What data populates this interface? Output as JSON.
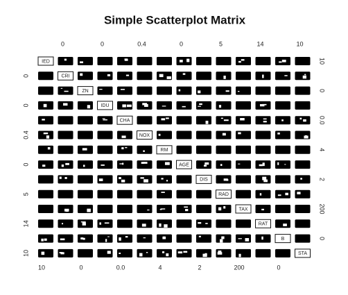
{
  "title": "Simple Scatterplot Matrix",
  "variables": [
    "IED",
    "CRI",
    "ZN",
    "IDU",
    "CHA",
    "NOX",
    "RM",
    "AGE",
    "DIS",
    "RAD",
    "TAX",
    "RAT",
    "B",
    "STA"
  ],
  "axis_labels": {
    "top": [
      "0",
      "0",
      "0.4",
      "0",
      "5",
      "14",
      "10"
    ],
    "bottom": [
      "10",
      "0",
      "0.0",
      "4",
      "2",
      "200",
      "0"
    ],
    "left": [
      "0",
      "0",
      "0.4",
      "0",
      "5",
      "14",
      "10"
    ],
    "right": [
      "10",
      "0",
      "0.0",
      "4",
      "2",
      "200",
      "0"
    ]
  }
}
